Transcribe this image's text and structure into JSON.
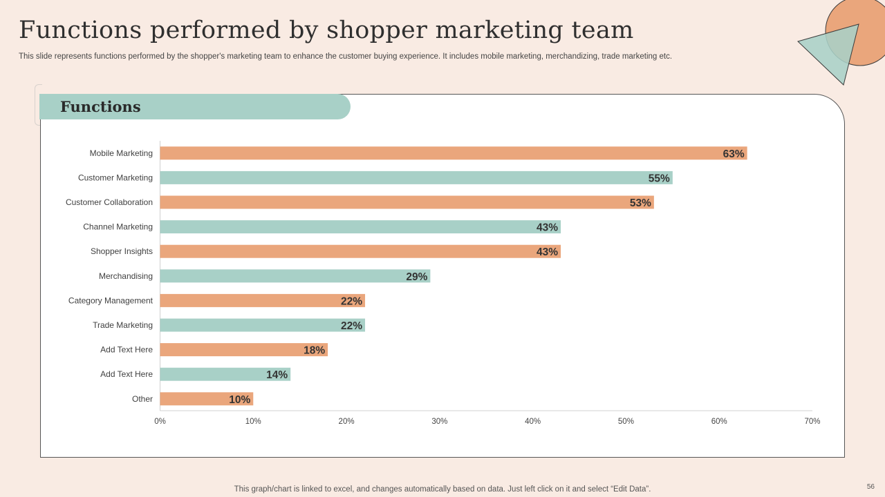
{
  "slide": {
    "title": "Functions performed by shopper marketing team",
    "subtitle": "This slide represents functions performed by the shopper's marketing team to enhance the customer buying experience. It includes mobile marketing, merchandizing, trade marketing etc.",
    "panel_heading": "Functions",
    "footnote": "This graph/chart is linked to excel, and changes automatically based on data. Just left click on it and select “Edit Data”.",
    "page_number": "56"
  },
  "colors": {
    "orange": "#eaa67c",
    "teal": "#a8d0c7",
    "background": "#f9ebe3"
  },
  "chart_data": {
    "type": "bar",
    "orientation": "horizontal",
    "categories": [
      "Mobile Marketing",
      "Customer Marketing",
      "Customer Collaboration",
      "Channel Marketing",
      "Shopper Insights",
      "Merchandising",
      "Category Management",
      "Trade Marketing",
      "Add Text Here",
      "Add Text Here",
      "Other"
    ],
    "values": [
      63,
      55,
      53,
      43,
      43,
      29,
      22,
      22,
      18,
      14,
      10
    ],
    "data_labels": [
      "63%",
      "55%",
      "53%",
      "43%",
      "43%",
      "29%",
      "22%",
      "22%",
      "18%",
      "14%",
      "10%"
    ],
    "bar_colors": [
      "#eaa67c",
      "#a8d0c7",
      "#eaa67c",
      "#a8d0c7",
      "#eaa67c",
      "#a8d0c7",
      "#eaa67c",
      "#a8d0c7",
      "#eaa67c",
      "#a8d0c7",
      "#eaa67c"
    ],
    "xlim": [
      0,
      70
    ],
    "xticks": [
      0,
      10,
      20,
      30,
      40,
      50,
      60,
      70
    ],
    "xtick_labels": [
      "0%",
      "10%",
      "20%",
      "30%",
      "40%",
      "50%",
      "60%",
      "70%"
    ],
    "grid": false,
    "legend": "none"
  }
}
